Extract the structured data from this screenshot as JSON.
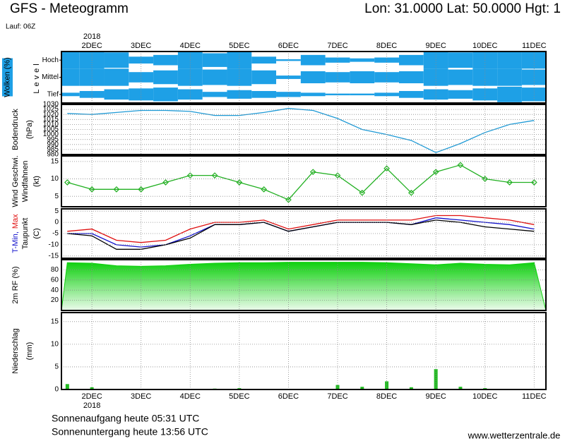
{
  "header": {
    "title": "GFS - Meteogramm",
    "location": "Lon: 31.0000 Lat: 50.0000 Hgt: 1",
    "run": "Lauf: 06Z",
    "year": "2018"
  },
  "footer": {
    "sunrise": "Sonnenaufgang heute 05:31 UTC",
    "sunset": "Sonnenuntergang heute 13:56 UTC",
    "source": "www.wetterzentrale.de"
  },
  "chart_data": [
    {
      "type": "cloud-layers",
      "title": "Wolken (%)",
      "ylabel": "Level",
      "x": [
        1.5,
        2,
        2.5,
        3,
        3.5,
        4,
        4.5,
        5,
        5.5,
        6,
        6.5,
        7,
        7.5,
        8,
        8.5,
        9,
        9.5,
        10,
        10.5,
        11
      ],
      "xlim": [
        1.38,
        11.24
      ],
      "xticks": [
        {
          "value": 2,
          "label": "2DEC"
        },
        {
          "value": 3,
          "label": "3DEC"
        },
        {
          "value": 4,
          "label": "4DEC"
        },
        {
          "value": 5,
          "label": "5DEC"
        },
        {
          "value": 6,
          "label": "6DEC"
        },
        {
          "value": 7,
          "label": "7DEC"
        },
        {
          "value": 8,
          "label": "8DEC"
        },
        {
          "value": 9,
          "label": "9DEC"
        },
        {
          "value": 10,
          "label": "10DEC"
        },
        {
          "value": 11,
          "label": "11DEC"
        }
      ],
      "ylim": [
        0,
        100
      ],
      "series": [
        {
          "name": "Hoch",
          "color": "#1ea0e6",
          "values": [
            100,
            100,
            90,
            40,
            60,
            100,
            80,
            100,
            40,
            10,
            60,
            30,
            20,
            30,
            60,
            100,
            90,
            100,
            100,
            100
          ]
        },
        {
          "name": "Mittel",
          "color": "#1ea0e6",
          "values": [
            100,
            100,
            100,
            60,
            80,
            100,
            90,
            100,
            80,
            20,
            70,
            60,
            70,
            60,
            70,
            100,
            90,
            100,
            100,
            90
          ]
        },
        {
          "name": "Tief",
          "color": "#1ea0e6",
          "values": [
            20,
            40,
            60,
            70,
            80,
            60,
            30,
            50,
            40,
            30,
            20,
            10,
            10,
            20,
            40,
            60,
            50,
            70,
            90,
            80
          ]
        }
      ]
    },
    {
      "type": "line",
      "ylabel": "Bodendruck",
      "yunit": "(hPa)",
      "x": [
        1.5,
        2,
        2.5,
        3,
        3.5,
        4,
        4.5,
        5,
        5.5,
        6,
        6.5,
        7,
        7.5,
        8,
        8.5,
        9,
        9.5,
        10,
        10.5,
        11
      ],
      "xlim": [
        1.38,
        11.24
      ],
      "xticks": [
        2,
        3,
        4,
        5,
        6,
        7,
        8,
        9,
        10,
        11
      ],
      "ylim": [
        980,
        1030
      ],
      "yticks": [
        980,
        985,
        990,
        995,
        1000,
        1005,
        1010,
        1015,
        1020,
        1025,
        1030
      ],
      "color": "#1e9ad6",
      "values": [
        1021,
        1020,
        1022,
        1024,
        1024,
        1023,
        1019,
        1019,
        1022,
        1026,
        1024,
        1016,
        1005,
        1000,
        994,
        982,
        991,
        1002,
        1010,
        1014
      ]
    },
    {
      "type": "line",
      "ylabel": "Windfahnen",
      "yunit": "(kt)",
      "marker": "diamond",
      "x": [
        1.5,
        2,
        2.5,
        3,
        3.5,
        4,
        4.5,
        5,
        5.5,
        6,
        6.5,
        7,
        7.5,
        8,
        8.5,
        9,
        9.5,
        10,
        10.5,
        11
      ],
      "xlim": [
        1.38,
        11.24
      ],
      "xticks": [
        2,
        3,
        4,
        5,
        6,
        7,
        8,
        9,
        10,
        11
      ],
      "ylim": [
        2,
        16.6
      ],
      "yticks": [
        5,
        10,
        15
      ],
      "series": [
        {
          "name": "Wind Geschwi.",
          "color": "#22b022",
          "values": [
            9,
            7,
            7,
            7,
            9,
            11,
            11,
            9,
            7,
            4,
            12,
            11,
            6,
            13,
            6,
            12,
            14,
            10,
            9,
            9
          ]
        }
      ]
    },
    {
      "type": "line",
      "yunit": "(C)",
      "x": [
        1.5,
        2,
        2.5,
        3,
        3.5,
        4,
        4.5,
        5,
        5.5,
        6,
        6.5,
        7,
        7.5,
        8,
        8.5,
        9,
        9.5,
        10,
        10.5,
        11
      ],
      "xlim": [
        1.38,
        11.24
      ],
      "xticks": [
        2,
        3,
        4,
        5,
        6,
        7,
        8,
        9,
        10,
        11
      ],
      "ylim": [
        -16,
        6
      ],
      "yticks": [
        5,
        0,
        -5,
        -10,
        -15
      ],
      "series": [
        {
          "name": "T-Min,",
          "color": "#1010cc",
          "values": [
            -5,
            -5,
            -10,
            -11,
            -10,
            -6,
            -1,
            -1,
            0,
            -4,
            -2,
            0,
            0,
            0,
            -1,
            2,
            1,
            0,
            -1,
            -3
          ]
        },
        {
          "name": "Max",
          "color": "#e01010",
          "values": [
            -4,
            -3,
            -8,
            -9,
            -8,
            -3,
            0,
            0,
            1,
            -3,
            -1,
            1,
            1,
            1,
            1,
            3,
            3,
            2,
            1,
            -1
          ]
        },
        {
          "name": "Taupunkt",
          "color": "#000000",
          "values": [
            -5,
            -6,
            -12,
            -12,
            -10,
            -7,
            -1,
            -1,
            0,
            -4,
            -2,
            0,
            0,
            0,
            -1,
            1,
            0,
            -2,
            -3,
            -4
          ]
        }
      ]
    },
    {
      "type": "area",
      "x": [
        1.5,
        2,
        2.5,
        3,
        3.5,
        4,
        4.5,
        5,
        5.5,
        6,
        6.5,
        7,
        7.5,
        8,
        8.5,
        9,
        9.5,
        10,
        10.5,
        11
      ],
      "xlim": [
        1.38,
        11.24
      ],
      "xticks": [
        2,
        3,
        4,
        5,
        6,
        7,
        8,
        9,
        10,
        11
      ],
      "ylim": [
        0,
        100
      ],
      "yticks": [
        20,
        40,
        60,
        80
      ],
      "series": [
        {
          "name": "2m RF (%)",
          "color": "#10d010",
          "values": [
            94,
            93,
            88,
            87,
            88,
            91,
            93,
            94,
            94,
            95,
            95,
            95,
            95,
            94,
            92,
            90,
            93,
            91,
            90,
            94
          ]
        }
      ]
    },
    {
      "type": "bar",
      "ylabel": "Niederschlag",
      "yunit": "(mm)",
      "x": [
        1.5,
        2,
        2.5,
        3,
        3.5,
        4,
        4.5,
        5,
        5.5,
        6,
        6.5,
        7,
        7.5,
        8,
        8.5,
        9,
        9.5,
        10,
        10.5,
        11
      ],
      "xlim": [
        1.38,
        11.24
      ],
      "xticks": [
        {
          "value": 2,
          "label": "2DEC"
        },
        {
          "value": 3,
          "label": "3DEC"
        },
        {
          "value": 4,
          "label": "4DEC"
        },
        {
          "value": 5,
          "label": "5DEC"
        },
        {
          "value": 6,
          "label": "6DEC"
        },
        {
          "value": 7,
          "label": "7DEC"
        },
        {
          "value": 8,
          "label": "8DEC"
        },
        {
          "value": 9,
          "label": "9DEC"
        },
        {
          "value": 10,
          "label": "10DEC"
        },
        {
          "value": 11,
          "label": "11DEC"
        }
      ],
      "ylim": [
        0,
        17
      ],
      "yticks": [
        0,
        5,
        10,
        15
      ],
      "color": "#22bb22",
      "values": [
        1.2,
        0.5,
        0,
        0,
        0,
        0,
        0.2,
        0.3,
        0,
        0,
        0,
        1.0,
        0.6,
        1.8,
        0.5,
        4.5,
        0.6,
        0.3,
        0,
        0.1
      ]
    }
  ]
}
